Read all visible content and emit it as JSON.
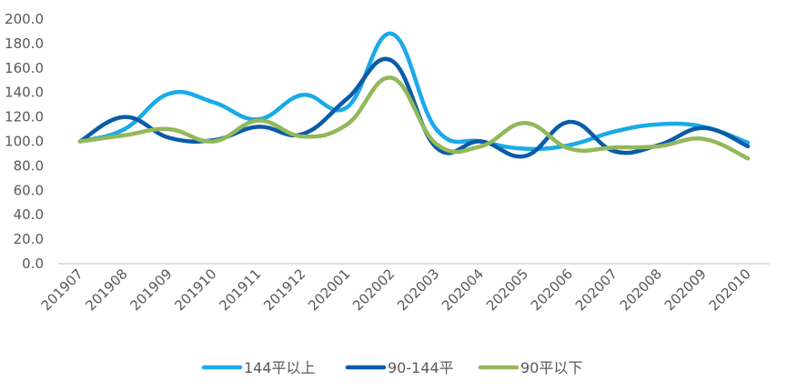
{
  "chart_data": {
    "type": "line",
    "smooth": true,
    "categories": [
      "201907",
      "201908",
      "201909",
      "201910",
      "201911",
      "201912",
      "202001",
      "202002",
      "202003",
      "202004",
      "202005",
      "202006",
      "202007",
      "202008",
      "202009",
      "202010"
    ],
    "ylim": [
      0,
      200
    ],
    "yticks": [
      "0.0",
      "20.0",
      "40.0",
      "60.0",
      "80.0",
      "100.0",
      "120.0",
      "140.0",
      "160.0",
      "180.0",
      "200.0"
    ],
    "grid": false,
    "legend_position": "bottom",
    "series": [
      {
        "name": "144平以上",
        "color": "#1aaae8",
        "values": [
          100,
          110,
          139,
          132,
          118,
          138,
          128,
          188,
          110,
          100,
          94,
          97,
          108,
          114,
          112,
          99
        ]
      },
      {
        "name": "90-144平",
        "color": "#0b5ba8",
        "values": [
          100,
          120,
          103,
          101,
          112,
          106,
          135,
          166,
          95,
          100,
          88,
          116,
          92,
          97,
          111,
          96
        ]
      },
      {
        "name": "90平以下",
        "color": "#92b85a",
        "values": [
          100,
          105,
          110,
          100,
          117,
          104,
          114,
          152,
          98,
          96,
          115,
          94,
          95,
          96,
          102,
          86
        ]
      }
    ]
  }
}
